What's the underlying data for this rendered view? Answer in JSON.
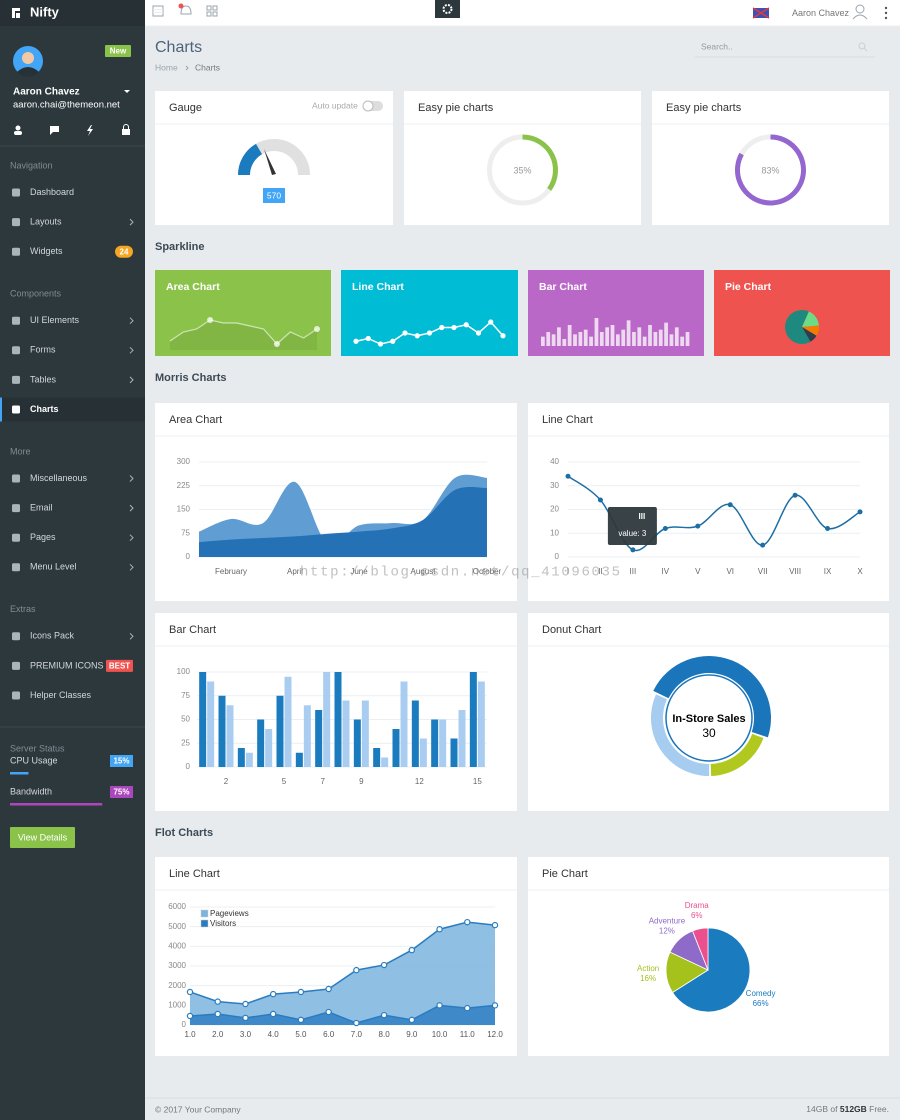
{
  "brand": "Nifty",
  "profile": {
    "badge": "New",
    "name": "Aaron Chavez",
    "email": "aaron.chai@themeon.net"
  },
  "nav": [
    {
      "heading": "Navigation",
      "items": [
        {
          "label": "Dashboard"
        },
        {
          "label": "Layouts",
          "arrow": true
        },
        {
          "label": "Widgets",
          "badge": "24",
          "badge_color": "#f5a623"
        }
      ]
    },
    {
      "heading": "Components",
      "items": [
        {
          "label": "UI Elements",
          "arrow": true
        },
        {
          "label": "Forms",
          "arrow": true
        },
        {
          "label": "Tables",
          "arrow": true
        },
        {
          "label": "Charts",
          "active": true
        }
      ]
    },
    {
      "heading": "More",
      "items": [
        {
          "label": "Miscellaneous",
          "arrow": true
        },
        {
          "label": "Email",
          "arrow": true
        },
        {
          "label": "Pages",
          "arrow": true
        },
        {
          "label": "Menu Level",
          "arrow": true
        }
      ]
    },
    {
      "heading": "Extras",
      "items": [
        {
          "label": "Icons Pack",
          "arrow": true
        },
        {
          "label": "PREMIUM ICONS",
          "badge": "BEST",
          "badge_color": "#ef5350"
        },
        {
          "label": "Helper Classes"
        }
      ]
    }
  ],
  "server_status": {
    "heading": "Server Status",
    "meters": [
      {
        "label": "CPU Usage",
        "value": 15,
        "value_label": "15%",
        "color": "#42a5f5"
      },
      {
        "label": "Bandwidth",
        "value": 75,
        "value_label": "75%",
        "color": "#ab47bc"
      }
    ],
    "button": "View Details"
  },
  "topbar": {
    "user": "Aaron Chavez"
  },
  "page": {
    "title": "Charts",
    "breadcrumb": [
      "Home",
      "Charts"
    ],
    "search_placeholder": "Search.."
  },
  "sections": [
    "Sparkline",
    "Morris Charts",
    "Flot Charts"
  ],
  "gauge": {
    "title": "Gauge",
    "toggle_label": "Auto update",
    "value": 570
  },
  "chart_data": [
    {
      "type": "ring",
      "title": "Easy pie charts",
      "value": 35,
      "value_label": "35%",
      "color": "#8bc34a"
    },
    {
      "type": "ring",
      "title": "Easy pie charts",
      "value": 83,
      "value_label": "83%",
      "color": "#9467d0"
    },
    {
      "type": "sparkarea",
      "title": "Area Chart",
      "background": "#8bc34a",
      "values": [
        2,
        5,
        6,
        9,
        8,
        8,
        7,
        6,
        1,
        5,
        3,
        6
      ]
    },
    {
      "type": "sparkline",
      "title": "Line Chart",
      "background": "#00bcd4",
      "values": [
        2,
        3,
        1,
        2,
        5,
        4,
        5,
        7,
        7,
        8,
        5,
        9,
        4
      ]
    },
    {
      "type": "sparkbar",
      "title": "Bar Chart",
      "background": "#ba68c8",
      "values": [
        4,
        6,
        5,
        8,
        3,
        9,
        5,
        6,
        7,
        4,
        12,
        6,
        8,
        9,
        5,
        7,
        11,
        6,
        8,
        4,
        9,
        6,
        7,
        10,
        5,
        8,
        4,
        6
      ]
    },
    {
      "type": "sparkpie",
      "title": "Pie Chart",
      "background": "#ef5350",
      "values": [
        65,
        17,
        10,
        8
      ],
      "colors": [
        "#1e8a7f",
        "#6ddc86",
        "#f57c00",
        "#2c3e50"
      ]
    },
    {
      "type": "area",
      "title": "Area Chart",
      "categories": [
        null,
        "February",
        null,
        "April",
        null,
        "June",
        null,
        "August",
        null,
        "October"
      ],
      "series": [
        {
          "color": "#5f9dd3",
          "values": [
            80,
            120,
            107,
            237,
            44,
            100,
            107,
            117,
            250,
            250
          ]
        },
        {
          "color": "#2471b5",
          "values": [
            47,
            55,
            60,
            65,
            73,
            80,
            90,
            117,
            212,
            218
          ]
        }
      ],
      "ylim": [
        0,
        300
      ],
      "yticks": [
        0,
        75,
        150,
        225,
        300
      ],
      "grid": true
    },
    {
      "type": "line",
      "title": "Line Chart",
      "categories": [
        "I",
        "II",
        "III",
        "IV",
        "V",
        "VI",
        "VII",
        "VIII",
        "IX",
        "X"
      ],
      "values": [
        34,
        24,
        3,
        12,
        13,
        22,
        5,
        26,
        12,
        19
      ],
      "color": "#1c6ea4",
      "ylim": [
        0,
        40
      ],
      "yticks": [
        0,
        10,
        20,
        30,
        40
      ],
      "grid": true,
      "tooltip": "value: 3"
    },
    {
      "type": "bar",
      "title": "Bar Chart",
      "categories": [
        null,
        "2",
        null,
        null,
        "5",
        null,
        "7",
        null,
        "9",
        null,
        null,
        "12",
        null,
        null,
        "15"
      ],
      "series": [
        {
          "color": "#1a7bbf",
          "values": [
            100,
            75,
            20,
            50,
            75,
            15,
            60,
            100,
            50,
            20,
            40,
            70,
            50,
            30,
            100
          ]
        },
        {
          "color": "#a9cdf0",
          "values": [
            90,
            65,
            15,
            40,
            95,
            65,
            100,
            70,
            70,
            10,
            90,
            30,
            50,
            60,
            90
          ]
        }
      ],
      "ylim": [
        0,
        100
      ],
      "yticks": [
        0,
        25,
        50,
        75,
        100
      ],
      "grid": true
    },
    {
      "type": "donut",
      "title": "Donut Chart",
      "categories": [
        "In-Store Sales",
        null,
        null
      ],
      "values": [
        30,
        12,
        20
      ],
      "colors": [
        "#1b75bb",
        "#b1c91e",
        "#a6cdef"
      ]
    },
    {
      "type": "arealine",
      "title": "Line Chart",
      "x": [
        1,
        2,
        3,
        4,
        5,
        6,
        7,
        8,
        9,
        10,
        11,
        12
      ],
      "series": [
        {
          "name": "Pageviews",
          "color": "#7db4df",
          "values": [
            1680,
            1190,
            1070,
            1570,
            1680,
            1830,
            2790,
            3050,
            3810,
            4870,
            5230,
            5080
          ]
        },
        {
          "name": "Visitors",
          "color": "#2a7cc0",
          "values": [
            460,
            560,
            360,
            560,
            260,
            660,
            100,
            500,
            260,
            1000,
            860,
            1000
          ]
        }
      ],
      "xlim": [
        1,
        12
      ],
      "xticks": [
        {
          "value": 1,
          "label": "1.0"
        },
        {
          "value": 2,
          "label": "2.0"
        },
        {
          "value": 3,
          "label": "3.0"
        },
        {
          "value": 4,
          "label": "4.0"
        },
        {
          "value": 5,
          "label": "5.0"
        },
        {
          "value": 6,
          "label": "6.0"
        },
        {
          "value": 7,
          "label": "7.0"
        },
        {
          "value": 8,
          "label": "8.0"
        },
        {
          "value": 9,
          "label": "9.0"
        },
        {
          "value": 10,
          "label": "10.0"
        },
        {
          "value": 11,
          "label": "11.0"
        },
        {
          "value": 12,
          "label": "12.0"
        }
      ],
      "ylim": [
        0,
        6000
      ],
      "yticks": [
        0,
        1000,
        2000,
        3000,
        4000,
        5000,
        6000
      ],
      "grid": true,
      "legend": "top-left"
    },
    {
      "type": "pie",
      "title": "Pie Chart",
      "categories": [
        "Comedy",
        "Action",
        "Adventure",
        "Drama"
      ],
      "values": [
        66,
        16,
        12,
        6
      ],
      "value_labels": [
        "66%",
        "16%",
        "12%",
        "6%"
      ],
      "colors": [
        "#1a7bbf",
        "#a5c21c",
        "#8e6bc9",
        "#ec4f8e"
      ]
    }
  ],
  "watermark": "http://blog.csdn.net/qq_41096035",
  "footer": {
    "copyright": "© 2017 Your Company",
    "storage": [
      "14GB of ",
      "512GB",
      " Free."
    ]
  }
}
